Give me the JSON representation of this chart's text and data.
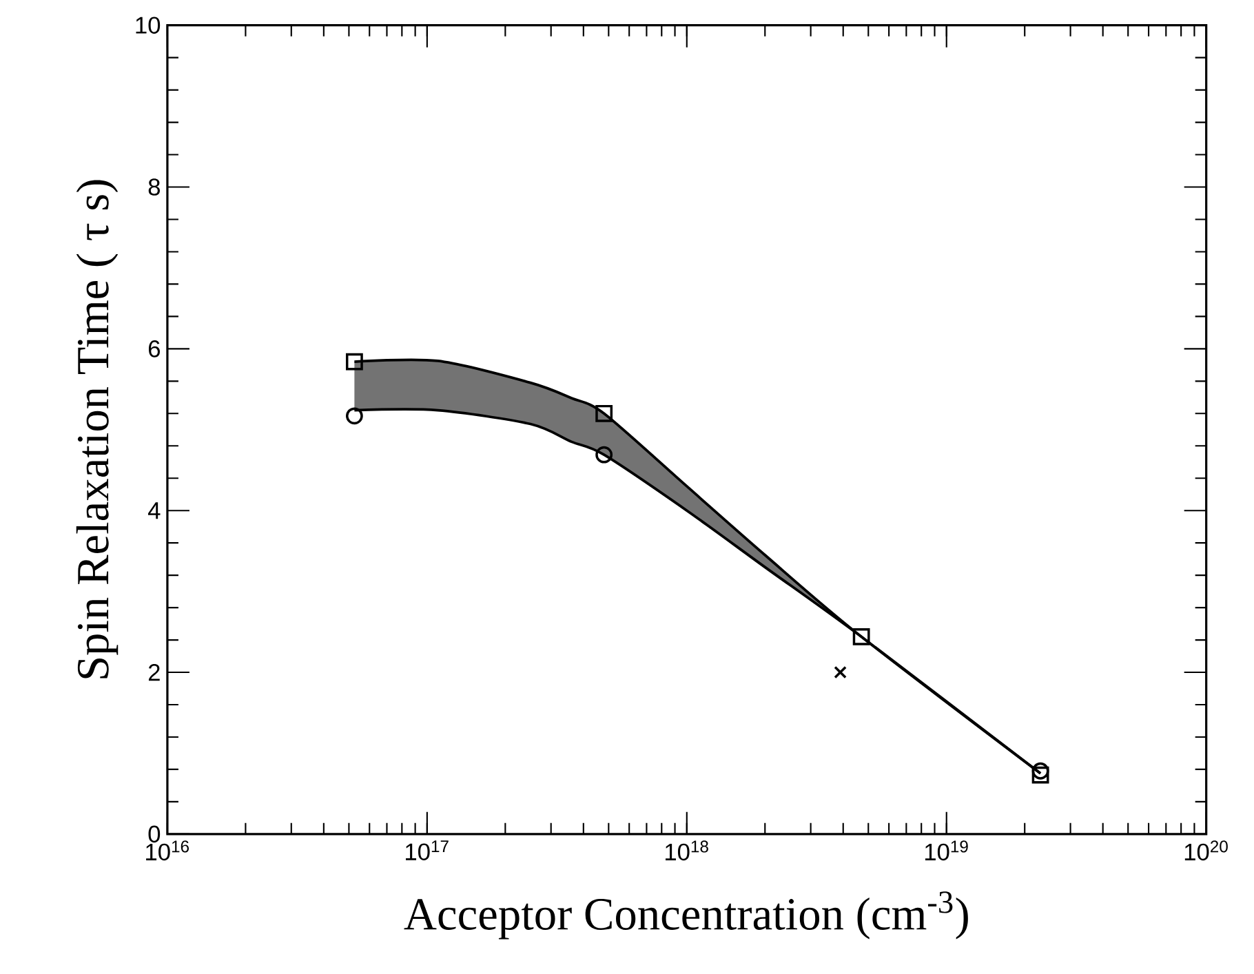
{
  "chart_data": {
    "type": "scatter",
    "xlabel": "Acceptor Concentration (cm$^{-3}$)",
    "ylabel": "Spin Relaxation Time ( τ s)",
    "log": "x",
    "xlim": [
      1e+16,
      1e+20
    ],
    "xticks": [
      {
        "value": 1e+16,
        "label": "10$^{16}$"
      },
      {
        "value": 1e+17,
        "label": "10$^{17}$"
      },
      {
        "value": 1e+18,
        "label": "10$^{18}$"
      },
      {
        "value": 1e+19,
        "label": "10$^{19}$"
      },
      {
        "value": 1e+20,
        "label": "10$^{20}$"
      }
    ],
    "ylim": [
      0,
      10
    ],
    "yticks": [
      0,
      2,
      4,
      6,
      8,
      10
    ],
    "grid": false,
    "series": [
      {
        "type": "line",
        "color": "#000000",
        "marker": "none",
        "x": [
          5.25e+16,
          1.1e+17,
          2.5e+17,
          3.6e+17,
          4.8e+17,
          1e+18,
          2e+18,
          4.7e+18,
          2.3e+19
        ],
        "values": [
          5.84,
          5.85,
          5.58,
          5.39,
          5.2,
          4.3,
          3.45,
          2.44,
          0.75
        ],
        "upper": [
          5.84,
          5.85,
          5.58,
          5.39,
          5.2,
          4.3,
          3.45,
          2.44,
          0.75
        ],
        "lower": [
          5.24,
          5.24,
          5.07,
          4.85,
          4.69,
          4.0,
          3.3,
          2.44,
          0.75
        ]
      },
      {
        "type": "line",
        "color": "#000000",
        "marker": "none",
        "x": [
          5.25e+16,
          1.1e+17,
          2.5e+17,
          3.6e+17,
          4.8e+17,
          1e+18,
          2e+18,
          4.7e+18,
          2.3e+19
        ],
        "values": [
          5.24,
          5.24,
          5.07,
          4.85,
          4.69,
          4.0,
          3.3,
          2.44,
          0.75
        ]
      },
      {
        "color": "#000000",
        "marker": "square",
        "x": [
          5.25e+16,
          4.8e+17,
          4.7e+18,
          2.3e+19
        ],
        "values": [
          5.84,
          5.2,
          2.44,
          0.73
        ]
      },
      {
        "color": "#000000",
        "marker": "circle",
        "x": [
          5.25e+16,
          4.8e+17,
          2.3e+19
        ],
        "values": [
          5.17,
          4.69,
          0.78
        ]
      },
      {
        "color": "#000000",
        "marker": "cross",
        "x": [
          3.9e+18
        ],
        "values": [
          2.0
        ]
      }
    ]
  }
}
